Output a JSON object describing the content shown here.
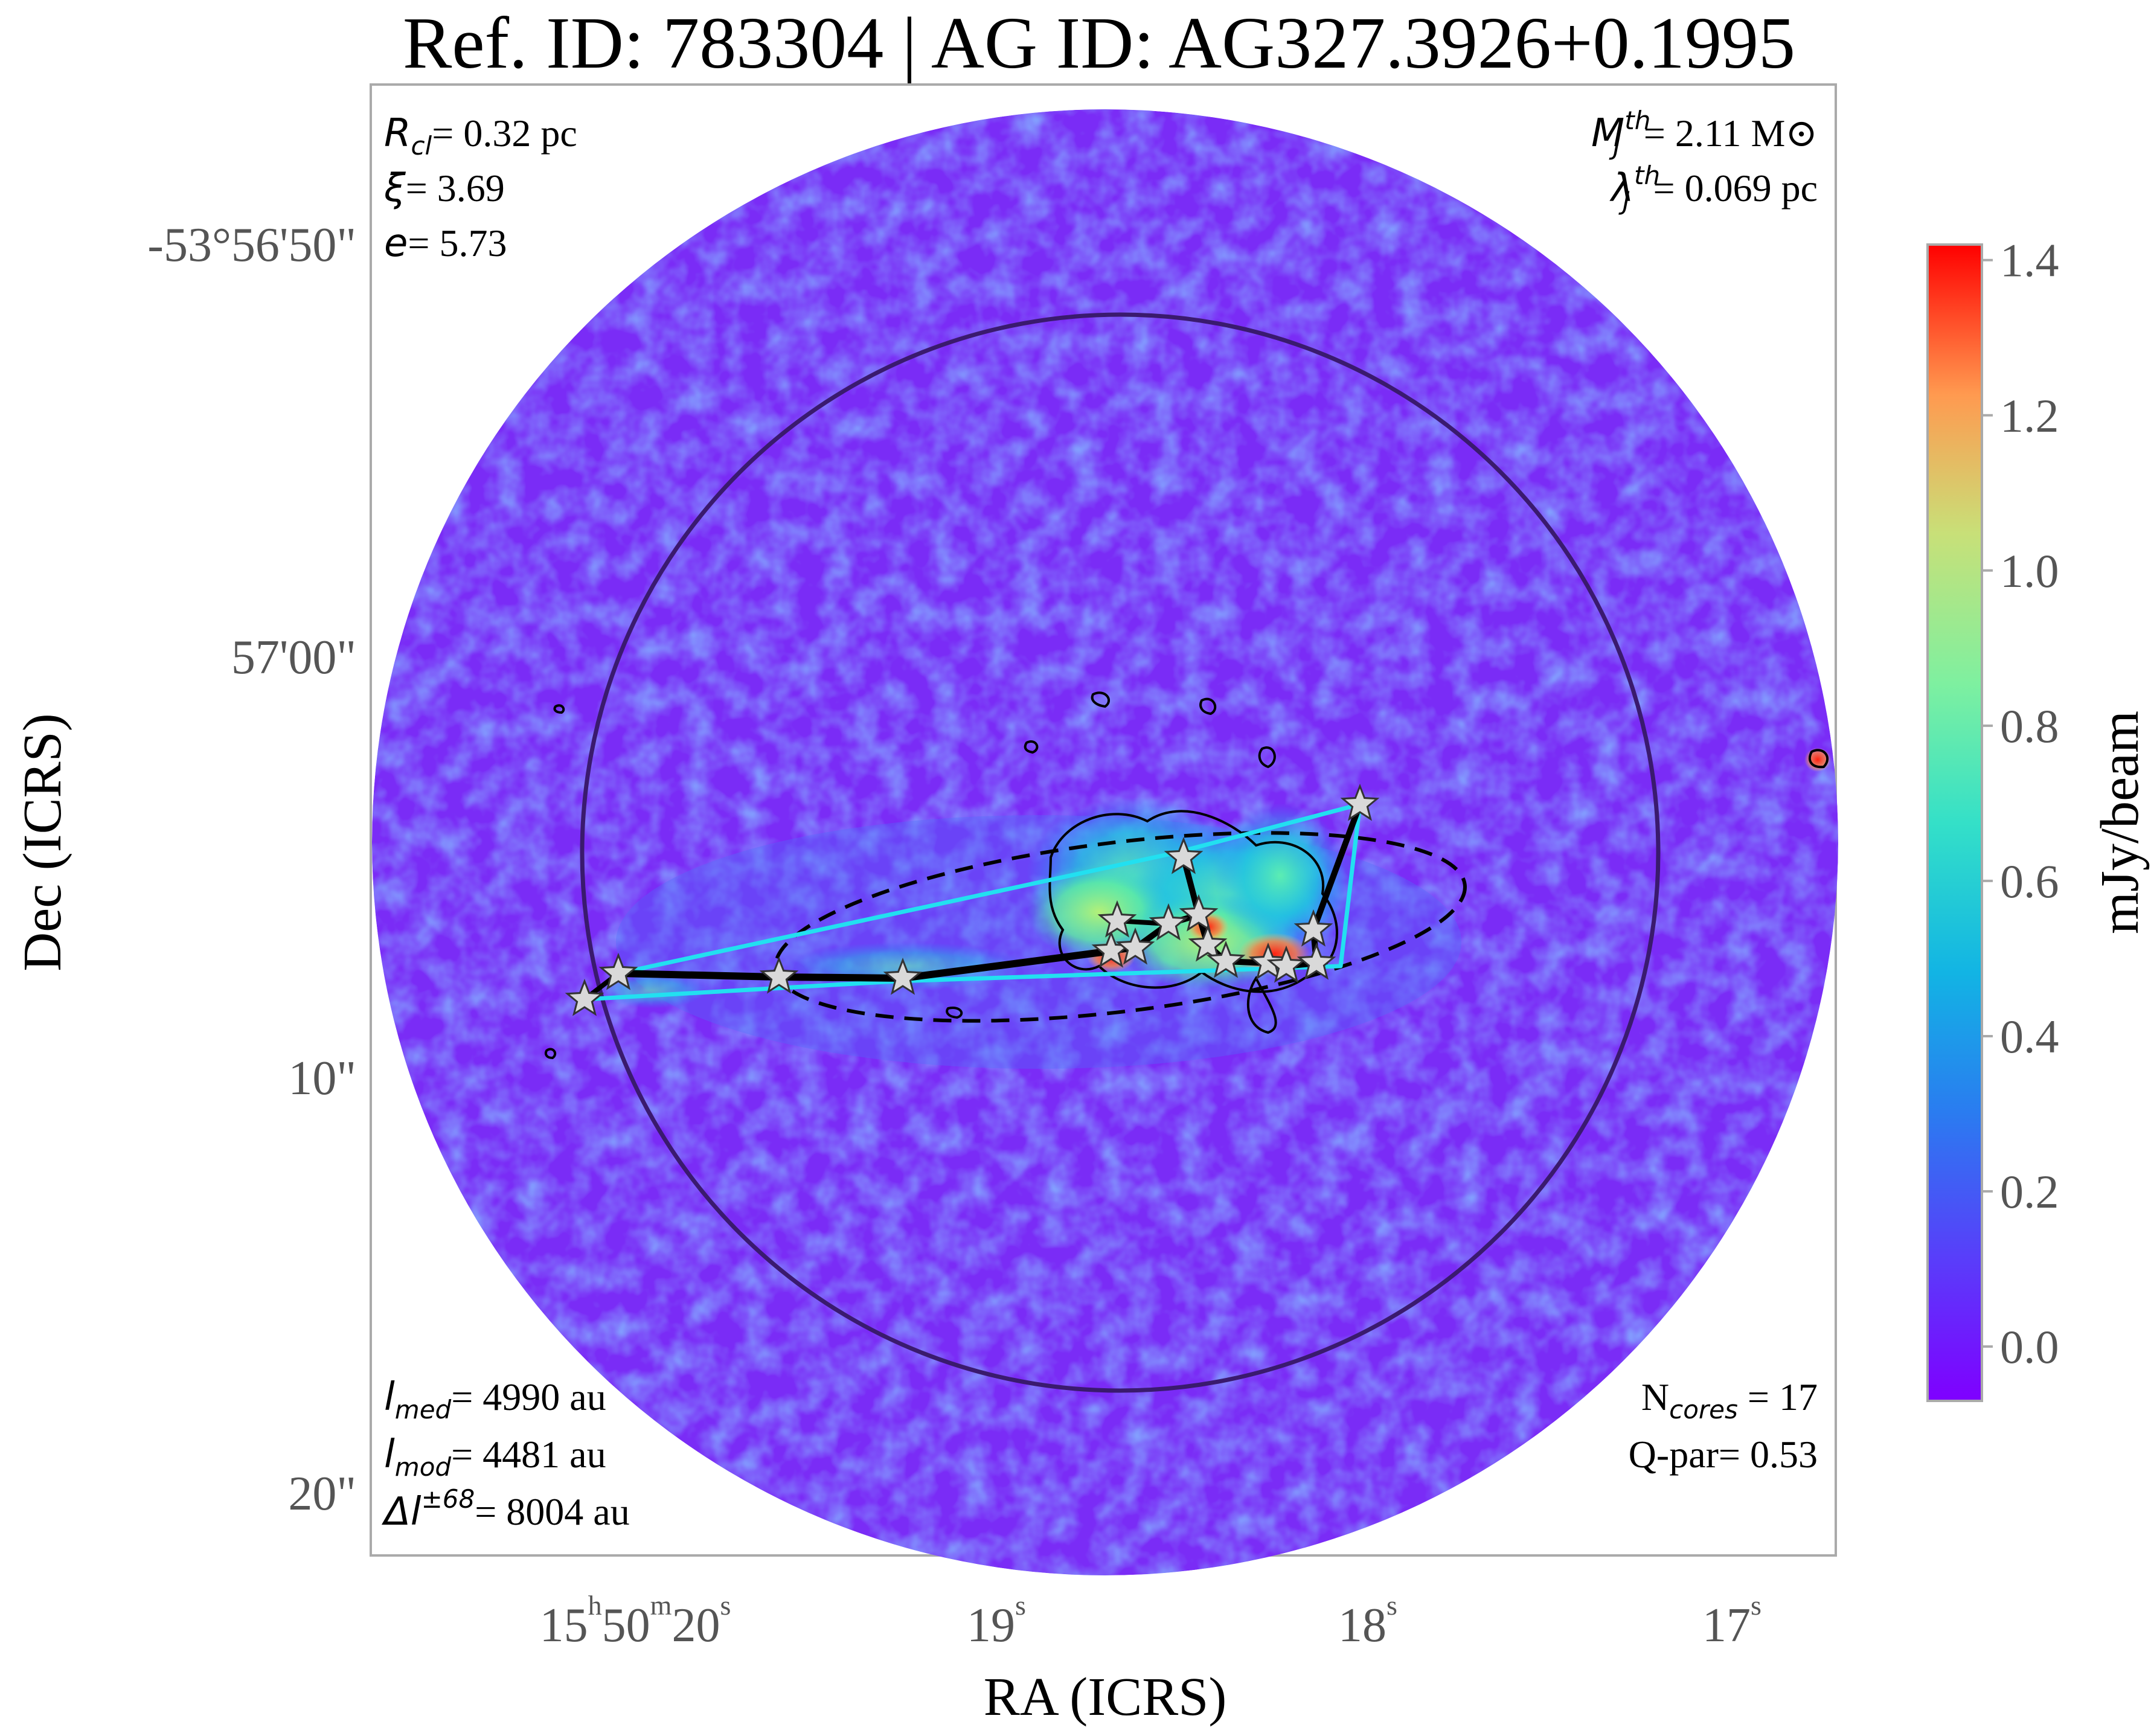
{
  "chart_data": {
    "type": "heatmap",
    "title": "Ref. ID: 783304 | AG ID: AG327.3926+0.1995",
    "xlabel": "RA (ICRS)",
    "ylabel": "Dec (ICRS)",
    "x_ticks": [
      {
        "h": "15",
        "m": "50",
        "s": "20",
        "label_full": "15h50m20s"
      },
      {
        "s": "19"
      },
      {
        "s": "18"
      },
      {
        "s": "17"
      }
    ],
    "y_ticks": [
      "-53°56'50\"",
      "57'00\"",
      "10\"",
      "20\""
    ],
    "colorbar": {
      "label": "mJy/beam",
      "range": [
        -0.07,
        1.42
      ],
      "ticks": [
        "1.4",
        "1.2",
        "1.0",
        "0.8",
        "0.6",
        "0.4",
        "0.2",
        "0.0"
      ],
      "colormap": "rainbow"
    },
    "annotations": {
      "top_left": [
        {
          "symbol": "R",
          "sub": "cl",
          "value": "= 0.32 pc"
        },
        {
          "symbol": "ξ",
          "value": "= 3.69"
        },
        {
          "symbol": "e",
          "value": "= 5.73"
        }
      ],
      "top_right": [
        {
          "symbol": "M",
          "sub": "J",
          "sup": "th",
          "value": "= 2.11 M⊙"
        },
        {
          "symbol": "λ",
          "sub": "J",
          "sup": "th",
          "value": "= 0.069 pc"
        }
      ],
      "bottom_left": [
        {
          "symbol": "l",
          "sub": "med",
          "value": "= 4990 au"
        },
        {
          "symbol": "l",
          "sub": "mod",
          "value": "= 4481 au"
        },
        {
          "symbol": "Δl",
          "sup": "±68",
          "value": "= 8004 au"
        }
      ],
      "bottom_right": [
        {
          "text": "N",
          "sub": "cores",
          "value": " = 17"
        },
        {
          "text": "Q-par",
          "value": "= 0.53"
        }
      ]
    },
    "cores_count": 17,
    "grid": false,
    "colors": {
      "background_map": "#7a2cf6",
      "circle": "#3a1a6e",
      "mst": "#000000",
      "hull": "#22e0f0",
      "ellipse": "#000000",
      "star_fill": "#d9d9d9"
    }
  }
}
